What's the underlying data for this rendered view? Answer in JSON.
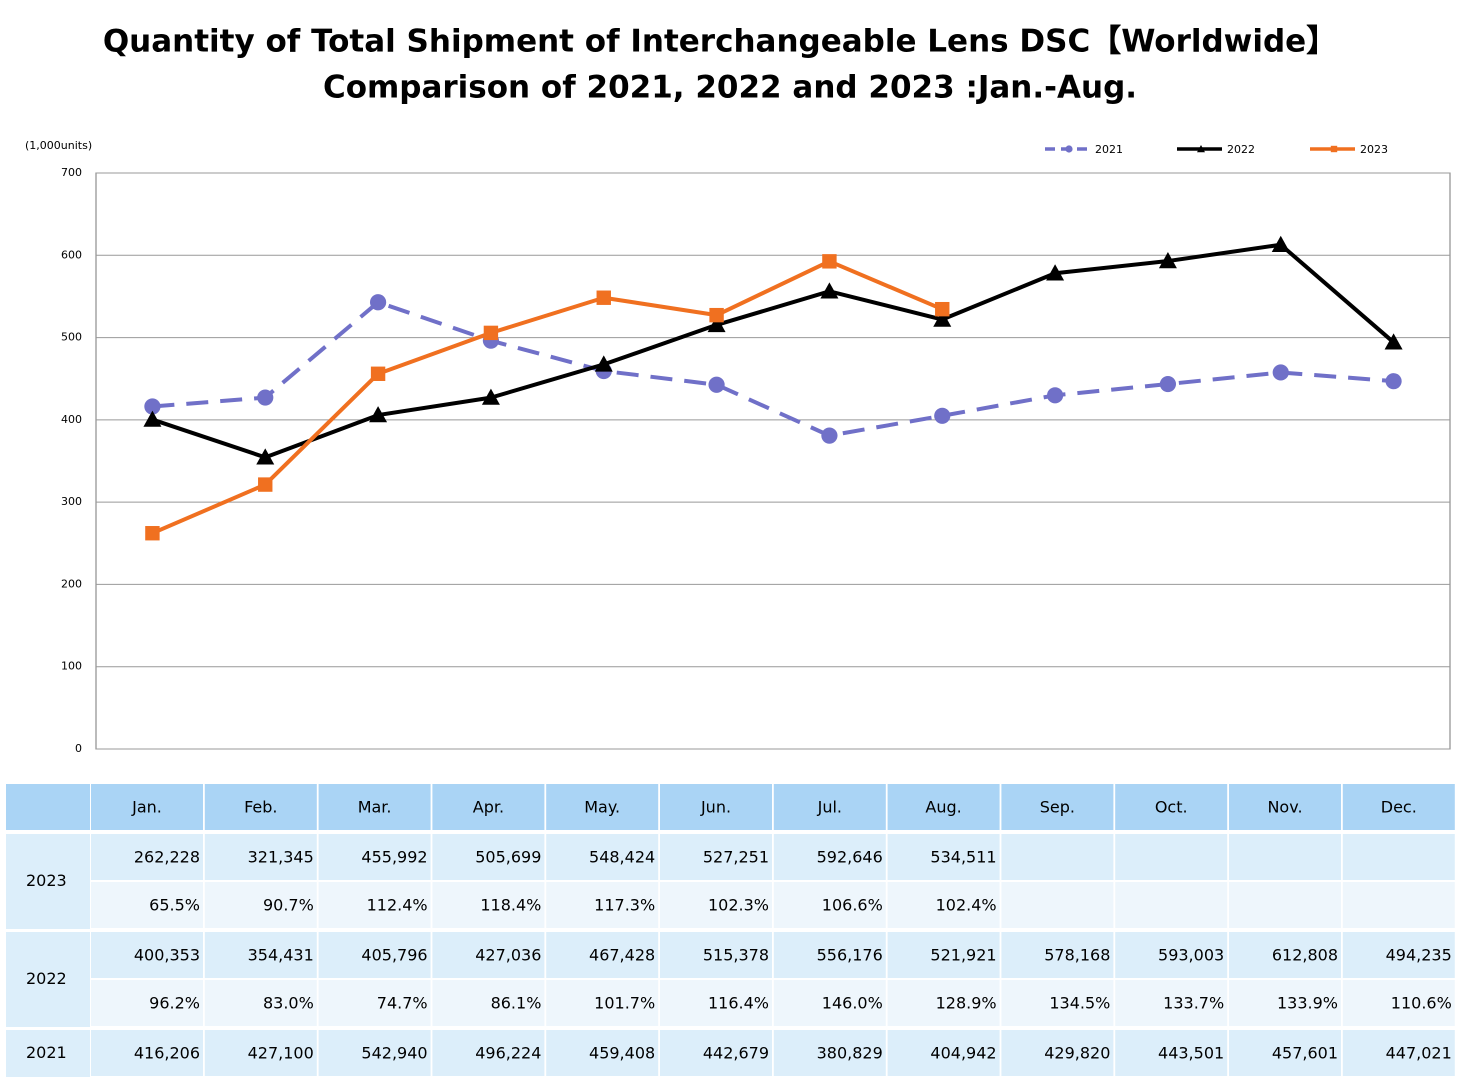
{
  "chart_data": {
    "type": "line",
    "title": "Quantity of Total Shipment of Interchangeable Lens DSC【Worldwide】",
    "subtitle": "Comparison of 2021, 2022 and 2023 :Jan.-Aug.",
    "y_unit_label": "(1,000units)",
    "categories": [
      "Jan.",
      "Feb.",
      "Mar.",
      "Apr.",
      "May.",
      "Jun.",
      "Jul.",
      "Aug.",
      "Sep.",
      "Oct.",
      "Nov.",
      "Dec."
    ],
    "ylim": [
      0,
      700
    ],
    "yticks": [
      0,
      100,
      200,
      300,
      400,
      500,
      600,
      700
    ],
    "grid": true,
    "legend": "top-right",
    "series": [
      {
        "name": "2023",
        "color": "#f07020",
        "marker": "square",
        "dashed": false,
        "values": [
          262.228,
          321.345,
          455.992,
          505.699,
          548.424,
          527.251,
          592.646,
          534.511,
          null,
          null,
          null,
          null
        ],
        "value_labels": [
          "262,228",
          "321,345",
          "455,992",
          "505,699",
          "548,424",
          "527,251",
          "592,646",
          "534,511",
          null,
          null,
          null,
          null
        ],
        "ratio_labels": [
          "65.5%",
          "90.7%",
          "112.4%",
          "118.4%",
          "117.3%",
          "102.3%",
          "106.6%",
          "102.4%",
          null,
          null,
          null,
          null
        ]
      },
      {
        "name": "2022",
        "color": "#000000",
        "marker": "triangle",
        "dashed": false,
        "values": [
          400.353,
          354.431,
          405.796,
          427.036,
          467.428,
          515.378,
          556.176,
          521.921,
          578.168,
          593.003,
          612.808,
          494.235
        ],
        "value_labels": [
          "400,353",
          "354,431",
          "405,796",
          "427,036",
          "467,428",
          "515,378",
          "556,176",
          "521,921",
          "578,168",
          "593,003",
          "612,808",
          "494,235"
        ],
        "ratio_labels": [
          "96.2%",
          "83.0%",
          "74.7%",
          "86.1%",
          "101.7%",
          "116.4%",
          "146.0%",
          "128.9%",
          "134.5%",
          "133.7%",
          "133.9%",
          "110.6%"
        ]
      },
      {
        "name": "2021",
        "color": "#7070c8",
        "marker": "circle",
        "dashed": true,
        "values": [
          416.206,
          427.1,
          542.94,
          496.224,
          459.408,
          442.679,
          380.829,
          404.942,
          429.82,
          443.501,
          457.601,
          447.021
        ],
        "value_labels": [
          "416,206",
          "427,100",
          "542,940",
          "496,224",
          "459,408",
          "442,679",
          "380,829",
          "404,942",
          "429,820",
          "443,501",
          "457,601",
          "447,021"
        ]
      }
    ]
  }
}
